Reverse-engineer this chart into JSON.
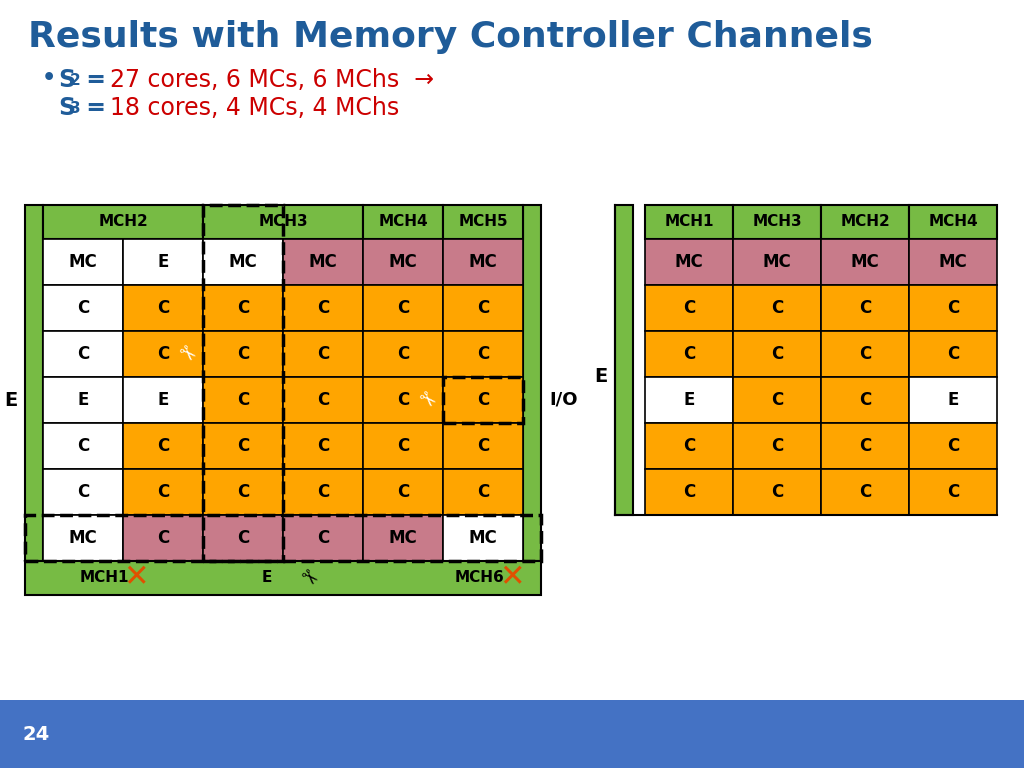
{
  "title": "Results with Memory Controller Channels",
  "title_color": "#1F5C99",
  "bullet_color": "#1F5C99",
  "bullet_val_color": "#CC0000",
  "green_header": "#77BB44",
  "pink_mc": "#C87B8A",
  "yellow_c": "#FFA500",
  "white_e": "#FFFFFF",
  "black": "#000000",
  "orange_x": "#E05000",
  "blue_bar": "#4472C4",
  "slide_num": "24",
  "left_grid": {
    "headers": [
      "MCH2",
      "MCH3",
      "MCH4",
      "MCH5"
    ],
    "header_spans": [
      2,
      2,
      1,
      1
    ],
    "rows": [
      [
        "MC",
        "E",
        "MC",
        "MC",
        "MC",
        "MC"
      ],
      [
        "C",
        "C",
        "C",
        "C",
        "C",
        "C"
      ],
      [
        "C",
        "C",
        "C",
        "C",
        "C",
        "C"
      ],
      [
        "E",
        "E",
        "C",
        "C",
        "C",
        "C"
      ],
      [
        "C",
        "C",
        "C",
        "C",
        "C",
        "C"
      ],
      [
        "C",
        "C",
        "C",
        "C",
        "C",
        "C"
      ],
      [
        "MC",
        "C",
        "C",
        "C",
        "MC",
        "MC"
      ]
    ],
    "row_colors": [
      [
        "white",
        "white",
        "white",
        "pink",
        "pink",
        "pink"
      ],
      [
        "white",
        "yellow",
        "yellow",
        "yellow",
        "yellow",
        "yellow"
      ],
      [
        "white",
        "yellow",
        "yellow",
        "yellow",
        "yellow",
        "yellow"
      ],
      [
        "white",
        "white",
        "yellow",
        "yellow",
        "yellow",
        "yellow"
      ],
      [
        "white",
        "yellow",
        "yellow",
        "yellow",
        "yellow",
        "yellow"
      ],
      [
        "white",
        "yellow",
        "yellow",
        "yellow",
        "yellow",
        "yellow"
      ],
      [
        "white",
        "pink",
        "pink",
        "pink",
        "pink",
        "white"
      ]
    ]
  },
  "right_grid": {
    "headers": [
      "MCH1",
      "MCH3",
      "MCH2",
      "MCH4"
    ],
    "rows": [
      [
        "MC",
        "MC",
        "MC",
        "MC"
      ],
      [
        "C",
        "C",
        "C",
        "C"
      ],
      [
        "C",
        "C",
        "C",
        "C"
      ],
      [
        "E",
        "C",
        "C",
        "E"
      ],
      [
        "C",
        "C",
        "C",
        "C"
      ],
      [
        "C",
        "C",
        "C",
        "C"
      ]
    ],
    "row_colors": [
      [
        "pink",
        "pink",
        "pink",
        "pink"
      ],
      [
        "yellow",
        "yellow",
        "yellow",
        "yellow"
      ],
      [
        "yellow",
        "yellow",
        "yellow",
        "yellow"
      ],
      [
        "white",
        "yellow",
        "yellow",
        "white"
      ],
      [
        "yellow",
        "yellow",
        "yellow",
        "yellow"
      ],
      [
        "yellow",
        "yellow",
        "yellow",
        "yellow"
      ]
    ]
  }
}
